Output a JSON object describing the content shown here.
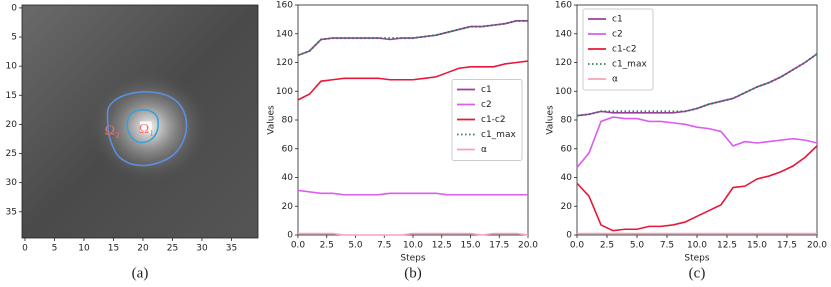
{
  "chart_data": [
    {
      "type": "image",
      "caption": "(a)",
      "annotations": [
        "Ω₂",
        "Ω₁"
      ],
      "xlim": [
        -0.5,
        39.5
      ],
      "ylim": [
        39.5,
        -0.5
      ],
      "xticks": [
        0,
        5,
        10,
        15,
        20,
        25,
        30,
        35
      ],
      "yticks": [
        0,
        5,
        10,
        15,
        20,
        25,
        30,
        35
      ]
    },
    {
      "type": "line",
      "caption": "(b)",
      "xlabel": "Steps",
      "ylabel": "Values",
      "legend": "center right",
      "x": [
        0,
        1,
        2,
        3,
        4,
        5,
        6,
        7,
        8,
        9,
        10,
        11,
        12,
        13,
        14,
        15,
        16,
        17,
        18,
        19,
        20
      ],
      "xlim": [
        0,
        20
      ],
      "ylim": [
        0,
        160
      ],
      "xticks": [
        {
          "value": 0,
          "label": "0.0"
        },
        {
          "value": 2.5,
          "label": "2.5"
        },
        {
          "value": 5,
          "label": "5.0"
        },
        {
          "value": 7.5,
          "label": "7.5"
        },
        {
          "value": 10,
          "label": "10.0"
        },
        {
          "value": 12.5,
          "label": "12.5"
        },
        {
          "value": 15,
          "label": "15.0"
        },
        {
          "value": 17.5,
          "label": "17.5"
        },
        {
          "value": 20,
          "label": "20.0"
        }
      ],
      "yticks": [
        0,
        20,
        40,
        60,
        80,
        100,
        120,
        140,
        160
      ],
      "series": [
        {
          "name": "c1",
          "color": "#9c3f9e",
          "dash": "solid",
          "values": [
            125,
            128,
            136,
            137,
            137,
            137,
            137,
            137,
            136,
            137,
            137,
            138,
            139,
            141,
            143,
            145,
            145,
            146,
            147,
            149,
            149
          ]
        },
        {
          "name": "c2",
          "color": "#dc5cf0",
          "dash": "solid",
          "values": [
            31,
            30,
            29,
            29,
            28,
            28,
            28,
            28,
            29,
            29,
            29,
            29,
            29,
            28,
            28,
            28,
            28,
            28,
            28,
            28,
            28
          ]
        },
        {
          "name": "c1-c2",
          "color": "#e8173a",
          "dash": "solid",
          "values": [
            94,
            98,
            107,
            108,
            109,
            109,
            109,
            109,
            108,
            108,
            108,
            109,
            110,
            113,
            116,
            117,
            117,
            117,
            119,
            120,
            121
          ]
        },
        {
          "name": "c1_max",
          "color": "#2e7d4f",
          "dash": "dotted",
          "values": [
            125,
            128,
            136,
            137,
            137,
            137,
            137,
            137,
            137,
            137,
            137,
            138,
            139,
            141,
            143,
            145,
            145,
            146,
            147,
            149,
            149
          ]
        },
        {
          "name": "α",
          "color": "#f4a3b8",
          "dash": "solid",
          "values": [
            1,
            1,
            1,
            1,
            0,
            0,
            0,
            0,
            0,
            0,
            1,
            1,
            1,
            1,
            1,
            1,
            0,
            1,
            1,
            1,
            0
          ]
        }
      ]
    },
    {
      "type": "line",
      "caption": "(c)",
      "xlabel": "Steps",
      "ylabel": "Values",
      "legend": "upper left",
      "x": [
        0,
        1,
        2,
        3,
        4,
        5,
        6,
        7,
        8,
        9,
        10,
        11,
        12,
        13,
        14,
        15,
        16,
        17,
        18,
        19,
        20
      ],
      "xlim": [
        0,
        20
      ],
      "ylim": [
        0,
        160
      ],
      "xticks": [
        {
          "value": 0,
          "label": "0.0"
        },
        {
          "value": 2.5,
          "label": "2.5"
        },
        {
          "value": 5,
          "label": "5.0"
        },
        {
          "value": 7.5,
          "label": "7.5"
        },
        {
          "value": 10,
          "label": "10.0"
        },
        {
          "value": 12.5,
          "label": "12.5"
        },
        {
          "value": 15,
          "label": "15.0"
        },
        {
          "value": 17.5,
          "label": "17.5"
        },
        {
          "value": 20,
          "label": "20.0"
        }
      ],
      "yticks": [
        0,
        20,
        40,
        60,
        80,
        100,
        120,
        140,
        160
      ],
      "series": [
        {
          "name": "c1",
          "color": "#9c3f9e",
          "dash": "solid",
          "values": [
            83,
            84,
            86,
            85,
            85,
            85,
            85,
            85,
            85,
            86,
            88,
            91,
            93,
            95,
            99,
            103,
            106,
            110,
            115,
            120,
            126
          ]
        },
        {
          "name": "c2",
          "color": "#dc5cf0",
          "dash": "solid",
          "values": [
            47,
            57,
            79,
            82,
            81,
            81,
            79,
            79,
            78,
            77,
            75,
            74,
            72,
            62,
            65,
            64,
            65,
            66,
            67,
            66,
            64
          ]
        },
        {
          "name": "c1-c2",
          "color": "#e8173a",
          "dash": "solid",
          "values": [
            36,
            27,
            7,
            3,
            4,
            4,
            6,
            6,
            7,
            9,
            13,
            17,
            21,
            33,
            34,
            39,
            41,
            44,
            48,
            54,
            62
          ]
        },
        {
          "name": "c1_max",
          "color": "#2e7d4f",
          "dash": "dotted",
          "values": [
            83,
            84,
            86,
            86,
            86,
            86,
            86,
            86,
            86,
            86,
            88,
            91,
            93,
            95,
            99,
            103,
            106,
            110,
            115,
            120,
            126
          ]
        },
        {
          "name": "α",
          "color": "#f4a3b8",
          "dash": "solid",
          "values": [
            1,
            1,
            1,
            1,
            1,
            1,
            1,
            1,
            1,
            1,
            1,
            1,
            1,
            1,
            1,
            1,
            1,
            1,
            1,
            1,
            1
          ]
        }
      ]
    }
  ]
}
